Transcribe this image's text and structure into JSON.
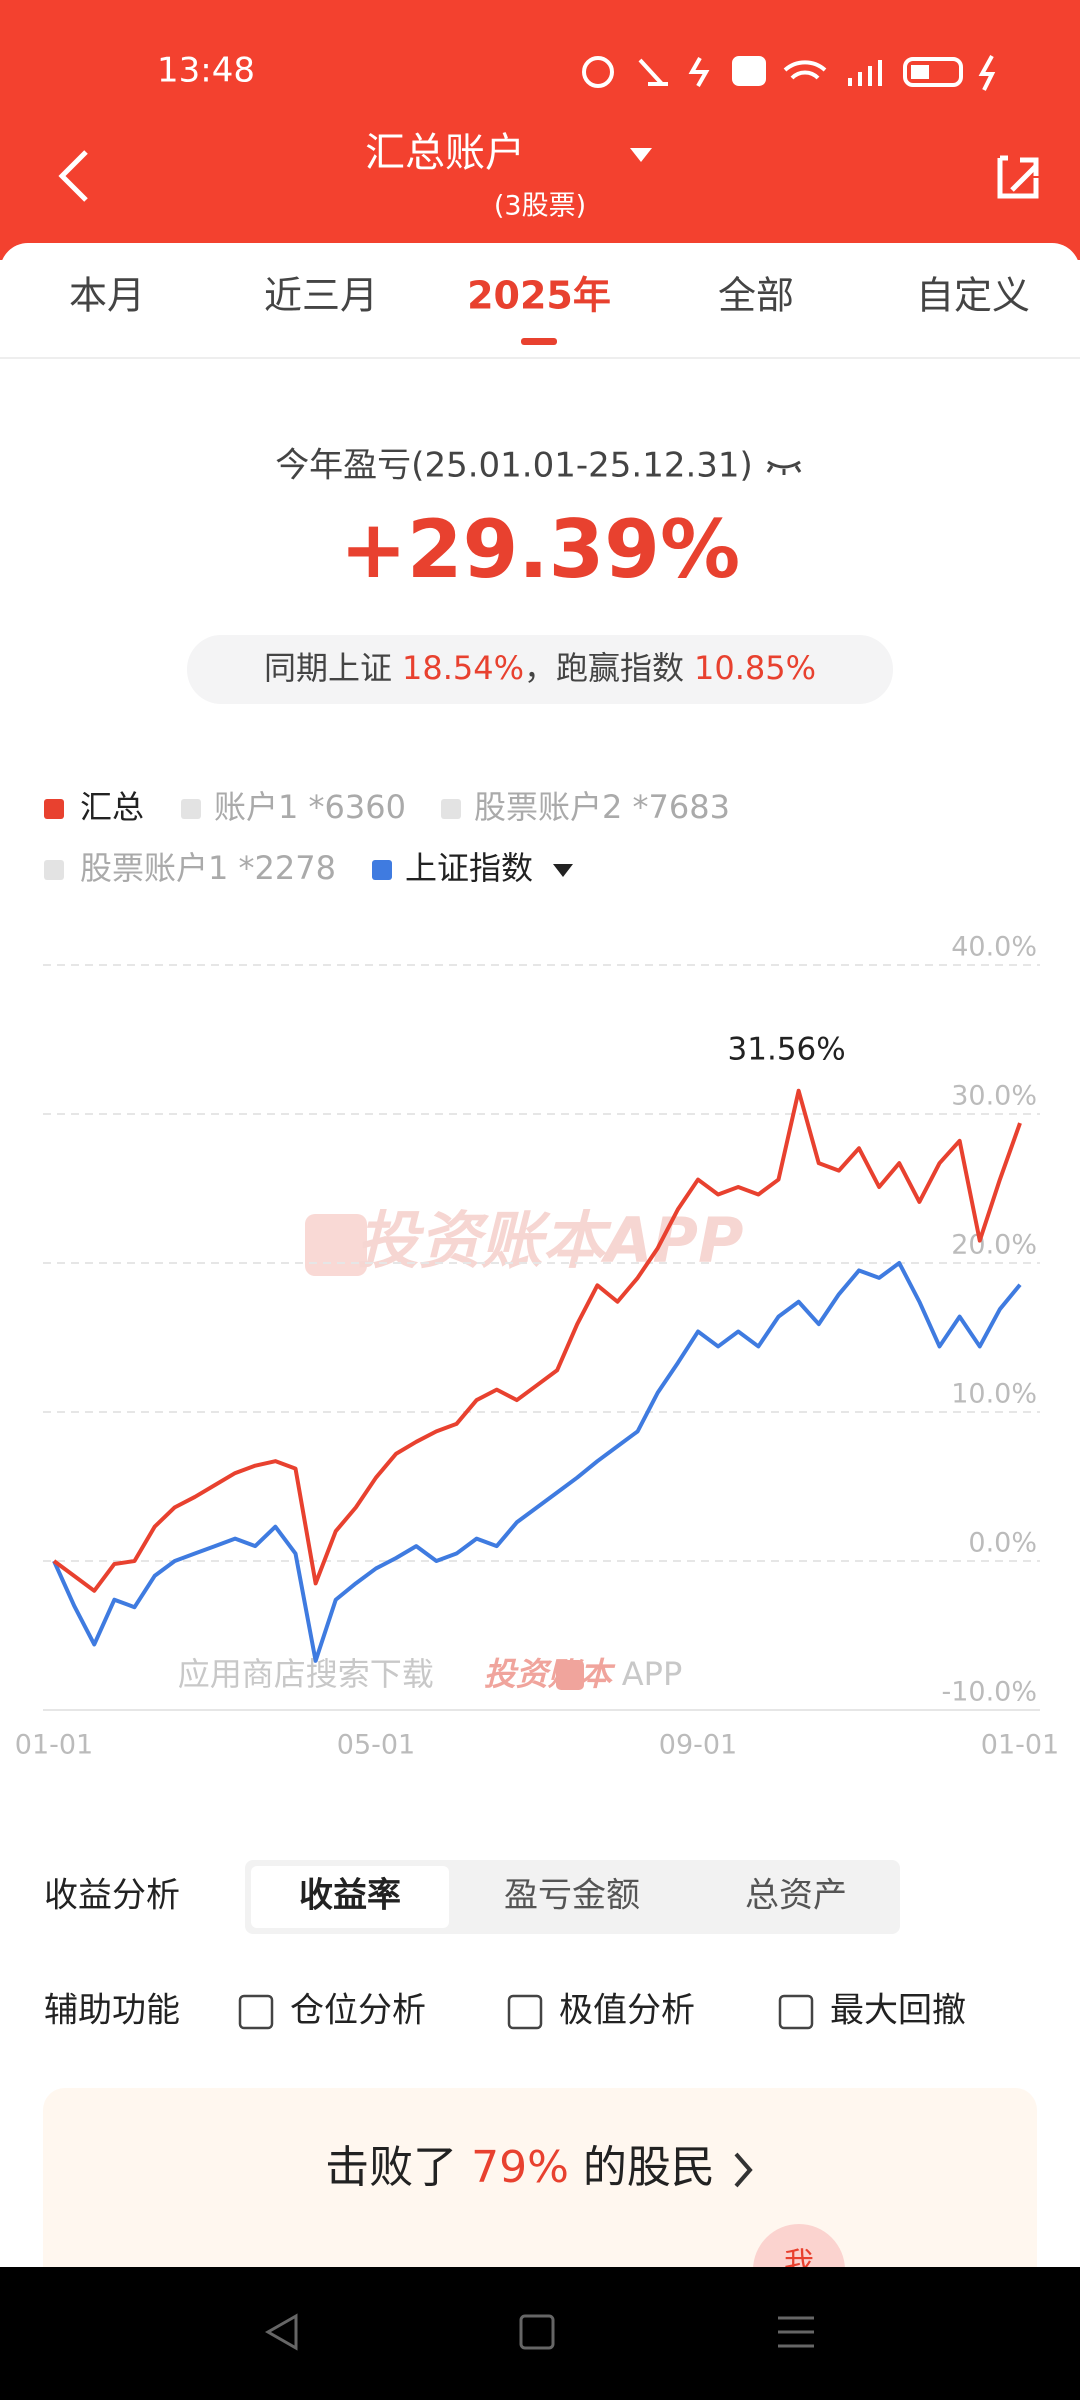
{
  "status_bar": {
    "time": "13:48"
  },
  "header": {
    "title": "汇总账户",
    "subtitle": "(3股票)"
  },
  "tabs": [
    "本月",
    "近三月",
    "2025年",
    "全部",
    "自定义"
  ],
  "selected_tab": 2,
  "summary": {
    "label": "今年盈亏(25.01.01-25.12.31)",
    "value": "+29.39%",
    "compare": [
      "同期上证",
      "18.54%",
      "，跑赢指数",
      "10.85%"
    ]
  },
  "legend_extra": [
    "账户1 *6360",
    "股票账户2 *7683",
    "股票账户1 *2278"
  ],
  "chart_data": {
    "type": "line",
    "categories": [
      "01-01",
      null,
      null,
      null,
      null,
      null,
      null,
      null,
      null,
      null,
      null,
      null,
      null,
      null,
      null,
      null,
      "05-01",
      null,
      null,
      null,
      null,
      null,
      null,
      null,
      null,
      null,
      null,
      null,
      null,
      null,
      null,
      null,
      "09-01",
      null,
      null,
      null,
      null,
      null,
      null,
      null,
      null,
      null,
      null,
      null,
      null,
      null,
      null,
      null,
      "01-01"
    ],
    "series": [
      {
        "name": "汇总",
        "color": "#e8412f",
        "values": [
          0,
          -1,
          -2,
          -0.2,
          0,
          2.3,
          3.6,
          4.3,
          5.1,
          5.9,
          6.4,
          6.7,
          6.2,
          -1.5,
          2,
          3.6,
          5.6,
          7.2,
          8,
          8.7,
          9.2,
          10.8,
          11.5,
          10.8,
          11.8,
          12.8,
          15.9,
          18.5,
          17.4,
          19,
          21,
          23.6,
          25.6,
          24.6,
          25.1,
          24.6,
          25.6,
          31.56,
          26.7,
          26.2,
          27.7,
          25.1,
          26.7,
          24.1,
          26.7,
          28.2,
          21.5,
          25.6,
          29.39
        ],
        "value_labels": [
          null,
          null,
          null,
          null,
          null,
          null,
          null,
          null,
          null,
          null,
          null,
          null,
          null,
          null,
          null,
          null,
          null,
          null,
          null,
          null,
          null,
          null,
          null,
          null,
          null,
          null,
          null,
          null,
          null,
          null,
          null,
          null,
          null,
          null,
          null,
          null,
          null,
          "31.56%",
          null,
          null,
          null,
          null,
          null,
          null,
          null,
          null,
          null,
          null,
          null
        ]
      },
      {
        "name": "上证指数",
        "color": "#3f7be0",
        "values": [
          0,
          -3,
          -5.6,
          -2.6,
          -3.1,
          -1,
          0,
          0.5,
          1,
          1.5,
          1,
          2.3,
          0.5,
          -6.7,
          -2.6,
          -1.5,
          -0.5,
          0.2,
          1,
          0,
          0.5,
          1.5,
          1,
          2.6,
          3.6,
          4.6,
          5.6,
          6.7,
          7.7,
          8.7,
          11.3,
          13.3,
          15.4,
          14.4,
          15.4,
          14.4,
          16.4,
          17.4,
          15.9,
          17.9,
          19.5,
          19,
          20,
          17.4,
          14.4,
          16.4,
          14.4,
          16.9,
          18.54
        ]
      }
    ],
    "ylim": [
      -10,
      40
    ],
    "yticks": [
      {
        "value": -10,
        "label": "-10.0%"
      },
      {
        "value": 0,
        "label": "0.0%"
      },
      {
        "value": 10,
        "label": "10.0%"
      },
      {
        "value": 20,
        "label": "20.0%"
      },
      {
        "value": 30,
        "label": "30.0%"
      },
      {
        "value": 40,
        "label": "40.0%"
      }
    ],
    "grid": true,
    "watermark": "投资账本APP",
    "footer_note": "应用商店搜索下载",
    "footer_brand": "投资账本",
    "footer_app": "APP"
  },
  "analysis": {
    "label": "收益分析",
    "options": [
      "收益率",
      "盈亏金额",
      "总资产"
    ],
    "selected": 0
  },
  "tools": {
    "label": "辅助功能",
    "options": [
      "仓位分析",
      "极值分析",
      "最大回撤"
    ]
  },
  "rank": {
    "prefix": "击败了",
    "value": "79%",
    "suffix": "的股民"
  },
  "avatar": "我"
}
